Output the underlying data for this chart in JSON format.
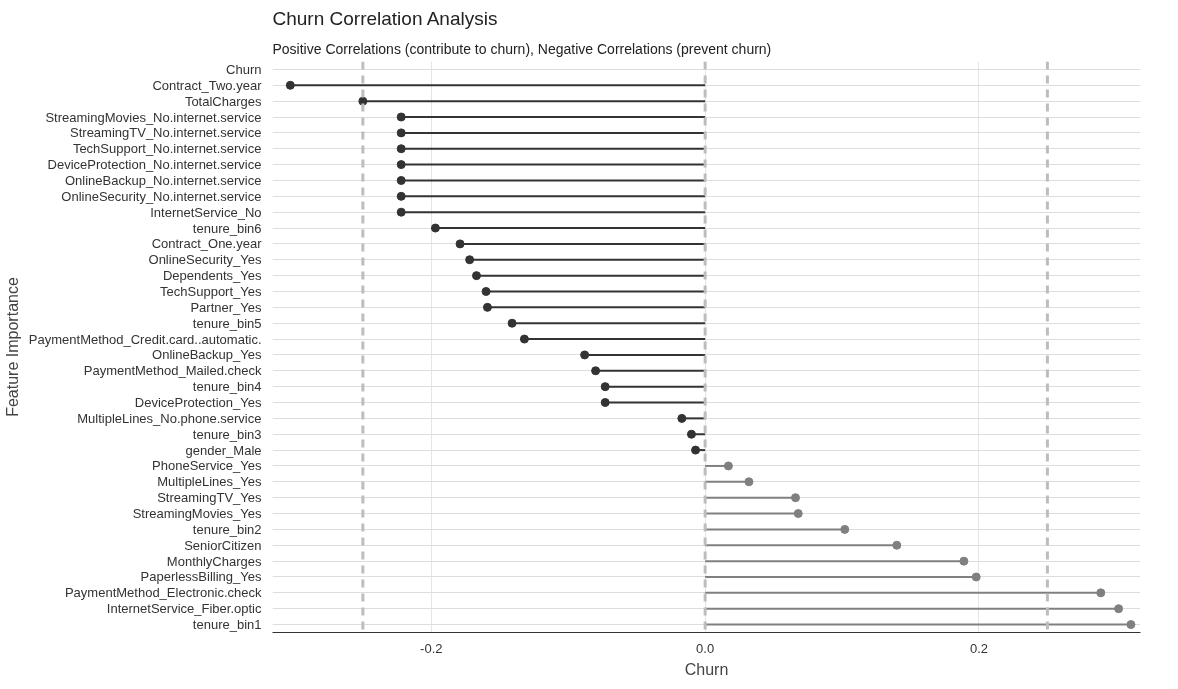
{
  "chart_data": {
    "type": "lollipop",
    "orientation": "horizontal",
    "title": "Churn Correlation Analysis",
    "subtitle": "Positive Correlations (contribute to churn), Negative Correlations (prevent churn)",
    "xlabel": "Churn",
    "ylabel": "Feature Importance",
    "categories": [
      "Churn",
      "Contract_Two.year",
      "TotalCharges",
      "StreamingMovies_No.internet.service",
      "StreamingTV_No.internet.service",
      "TechSupport_No.internet.service",
      "DeviceProtection_No.internet.service",
      "OnlineBackup_No.internet.service",
      "OnlineSecurity_No.internet.service",
      "InternetService_No",
      "tenure_bin6",
      "Contract_One.year",
      "OnlineSecurity_Yes",
      "Dependents_Yes",
      "TechSupport_Yes",
      "Partner_Yes",
      "tenure_bin5",
      "PaymentMethod_Credit.card..automatic.",
      "OnlineBackup_Yes",
      "PaymentMethod_Mailed.check",
      "tenure_bin4",
      "DeviceProtection_Yes",
      "MultipleLines_No.phone.service",
      "tenure_bin3",
      "gender_Male",
      "PhoneService_Yes",
      "MultipleLines_Yes",
      "StreamingTV_Yes",
      "StreamingMovies_Yes",
      "tenure_bin2",
      "SeniorCitizen",
      "MonthlyCharges",
      "PaperlessBilling_Yes",
      "PaymentMethod_Electronic.check",
      "InternetService_Fiber.optic",
      "tenure_bin1"
    ],
    "values": [
      null,
      -0.303,
      -0.25,
      -0.222,
      -0.222,
      -0.222,
      -0.222,
      -0.222,
      -0.222,
      -0.222,
      -0.197,
      -0.179,
      -0.172,
      -0.167,
      -0.16,
      -0.159,
      -0.141,
      -0.132,
      -0.088,
      -0.08,
      -0.073,
      -0.073,
      -0.017,
      -0.01,
      -0.007,
      0.017,
      0.032,
      0.066,
      0.068,
      0.102,
      0.14,
      0.189,
      0.198,
      0.289,
      0.302,
      0.311
    ],
    "colors": [
      "#333333",
      "#333333",
      "#333333",
      "#333333",
      "#333333",
      "#333333",
      "#333333",
      "#333333",
      "#333333",
      "#333333",
      "#333333",
      "#333333",
      "#333333",
      "#333333",
      "#333333",
      "#333333",
      "#333333",
      "#333333",
      "#333333",
      "#333333",
      "#333333",
      "#333333",
      "#333333",
      "#333333",
      "#333333",
      "#808080",
      "#808080",
      "#808080",
      "#808080",
      "#808080",
      "#808080",
      "#808080",
      "#808080",
      "#808080",
      "#808080",
      "#808080"
    ],
    "xlim": [
      -0.316,
      0.318
    ],
    "xticks": [
      -0.2,
      {
        "value": 0,
        "label": "0.0"
      },
      0.2
    ],
    "grid": true,
    "marker": "circle",
    "ref_lines": [
      {
        "axis": "x",
        "value": -0.25,
        "color": "#bdbdbd",
        "line_style": "dashed"
      },
      {
        "axis": "x",
        "value": 0.0,
        "color": "#bdbdbd",
        "line_style": "dashed"
      },
      {
        "axis": "x",
        "value": 0.25,
        "color": "#bdbdbd",
        "line_style": "dashed"
      }
    ]
  }
}
